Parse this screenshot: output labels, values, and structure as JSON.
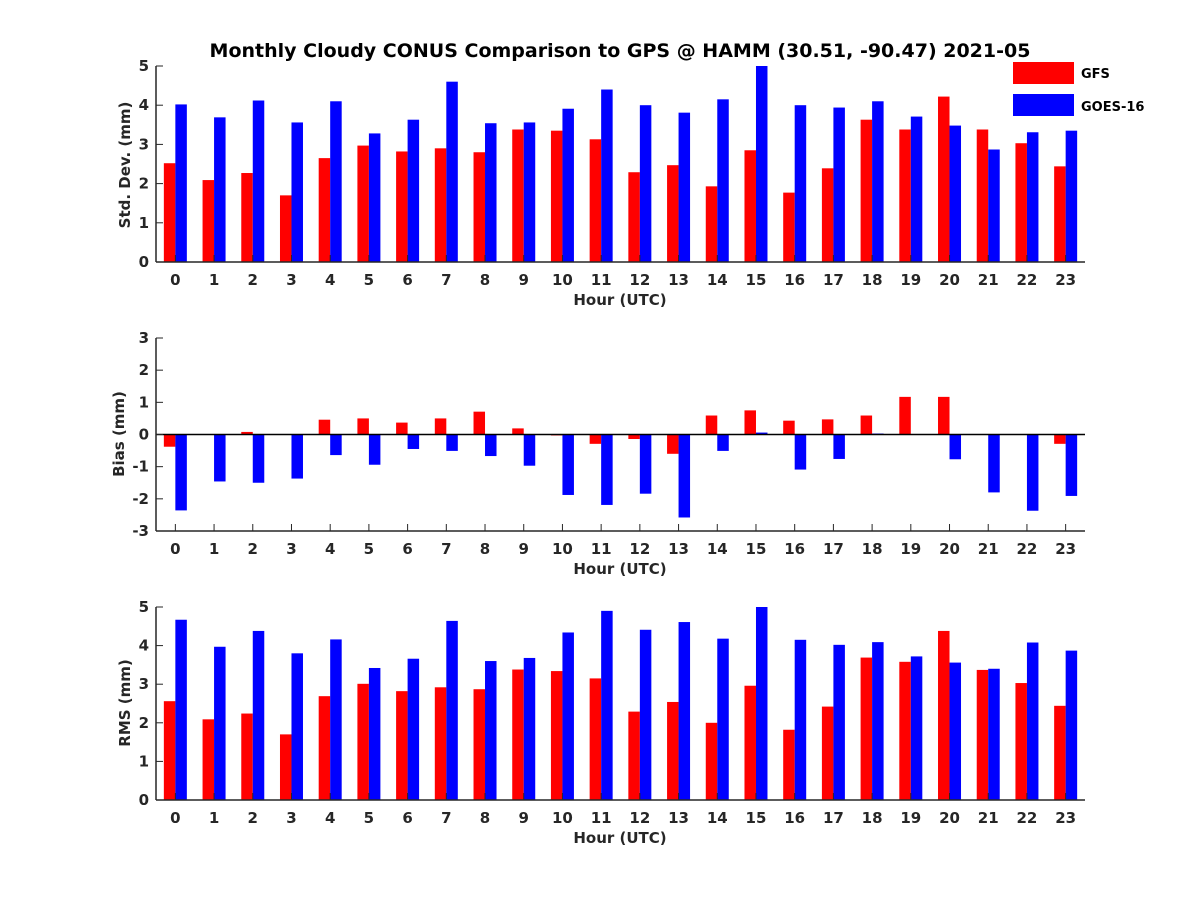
{
  "figure_title": "Monthly Cloudy CONUS Comparison to GPS @ HAMM (30.51, -90.47) 2021-05",
  "legend": [
    {
      "label": "GFS",
      "color": "#ff0000"
    },
    {
      "label": "GOES-16",
      "color": "#0000ff"
    }
  ],
  "chart_data": [
    {
      "type": "bar",
      "ylabel": "Std. Dev. (mm)",
      "xlabel": "Hour (UTC)",
      "ylim": [
        0,
        5
      ],
      "yticks": [
        0,
        1,
        2,
        3,
        4,
        5
      ],
      "categories": [
        "0",
        "1",
        "2",
        "3",
        "4",
        "5",
        "6",
        "7",
        "8",
        "9",
        "10",
        "11",
        "12",
        "13",
        "14",
        "15",
        "16",
        "17",
        "18",
        "19",
        "20",
        "21",
        "22",
        "23"
      ],
      "series": [
        {
          "name": "GFS",
          "color": "#ff0000",
          "values": [
            2.52,
            2.09,
            2.27,
            1.7,
            2.65,
            2.97,
            2.82,
            2.9,
            2.8,
            3.38,
            3.35,
            3.13,
            2.29,
            2.47,
            1.93,
            2.85,
            1.77,
            2.39,
            3.63,
            3.38,
            4.22,
            3.38,
            3.03,
            2.44
          ]
        },
        {
          "name": "GOES-16",
          "color": "#0000ff",
          "values": [
            4.02,
            3.69,
            4.12,
            3.56,
            4.1,
            3.28,
            3.63,
            4.6,
            3.54,
            3.56,
            3.91,
            4.4,
            4.0,
            3.81,
            4.15,
            5.0,
            4.0,
            3.94,
            4.1,
            3.71,
            3.48,
            2.87,
            3.31,
            3.35
          ]
        }
      ]
    },
    {
      "type": "bar",
      "ylabel": "Bias (mm)",
      "xlabel": "Hour (UTC)",
      "ylim": [
        -3,
        3
      ],
      "yticks": [
        -3,
        -2,
        -1,
        0,
        1,
        2,
        3
      ],
      "zero_line": true,
      "categories": [
        "0",
        "1",
        "2",
        "3",
        "4",
        "5",
        "6",
        "7",
        "8",
        "9",
        "10",
        "11",
        "12",
        "13",
        "14",
        "15",
        "16",
        "17",
        "18",
        "19",
        "20",
        "21",
        "22",
        "23"
      ],
      "series": [
        {
          "name": "GFS",
          "color": "#ff0000",
          "values": [
            -0.38,
            0.0,
            0.08,
            0.0,
            0.46,
            0.5,
            0.37,
            0.5,
            0.71,
            0.19,
            -0.03,
            -0.29,
            -0.14,
            -0.6,
            0.59,
            0.75,
            0.43,
            0.47,
            0.59,
            1.17,
            1.17,
            0.0,
            0.0,
            -0.29
          ]
        },
        {
          "name": "GOES-16",
          "color": "#0000ff",
          "values": [
            -2.36,
            -1.46,
            -1.5,
            -1.37,
            -0.64,
            -0.94,
            -0.45,
            -0.51,
            -0.67,
            -0.97,
            -1.88,
            -2.19,
            -1.84,
            -2.58,
            -0.51,
            0.06,
            -1.09,
            -0.76,
            0.03,
            0.0,
            -0.77,
            -1.8,
            -2.37,
            -1.91
          ]
        }
      ]
    },
    {
      "type": "bar",
      "ylabel": "RMS (mm)",
      "xlabel": "Hour (UTC)",
      "ylim": [
        0,
        5
      ],
      "yticks": [
        0,
        1,
        2,
        3,
        4,
        5
      ],
      "categories": [
        "0",
        "1",
        "2",
        "3",
        "4",
        "5",
        "6",
        "7",
        "8",
        "9",
        "10",
        "11",
        "12",
        "13",
        "14",
        "15",
        "16",
        "17",
        "18",
        "19",
        "20",
        "21",
        "22",
        "23"
      ],
      "series": [
        {
          "name": "GFS",
          "color": "#ff0000",
          "values": [
            2.56,
            2.09,
            2.24,
            1.7,
            2.69,
            3.01,
            2.82,
            2.92,
            2.87,
            3.38,
            3.34,
            3.15,
            2.29,
            2.54,
            2.0,
            2.96,
            1.82,
            2.42,
            3.69,
            3.58,
            4.38,
            3.37,
            3.03,
            2.44
          ]
        },
        {
          "name": "GOES-16",
          "color": "#0000ff",
          "values": [
            4.67,
            3.97,
            4.38,
            3.8,
            4.16,
            3.42,
            3.66,
            4.64,
            3.6,
            3.68,
            4.34,
            4.9,
            4.41,
            4.61,
            4.18,
            5.0,
            4.15,
            4.02,
            4.09,
            3.72,
            3.56,
            3.4,
            4.08,
            3.87
          ]
        }
      ]
    }
  ]
}
